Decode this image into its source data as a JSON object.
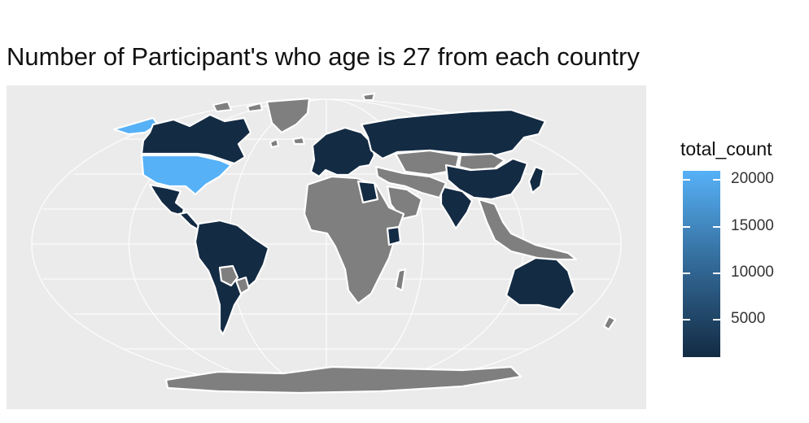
{
  "title": "Number of Participant's who age is 27 from each country",
  "legend": {
    "title": "total_count",
    "breaks": [
      {
        "label": "20000",
        "value": 20000
      },
      {
        "label": "15000",
        "value": 15000
      },
      {
        "label": "10000",
        "value": 10000
      },
      {
        "label": "5000",
        "value": 5000
      }
    ],
    "min": 1000,
    "max": 21000,
    "colors": {
      "low": "#132b43",
      "high": "#56b1f7",
      "na": "#7f7f7f"
    }
  },
  "map": {
    "projection": "robinson",
    "panel_background": "#ebebeb",
    "graticule_color": "#ffffff",
    "border_color": "#ffffff"
  },
  "regions": [
    {
      "name": "Alaska",
      "fill": "high"
    },
    {
      "name": "Canada",
      "fill": "low"
    },
    {
      "name": "United States",
      "fill": "high"
    },
    {
      "name": "Mexico",
      "fill": "low"
    },
    {
      "name": "Central America",
      "fill": "low"
    },
    {
      "name": "South America",
      "fill": "low"
    },
    {
      "name": "Bolivia",
      "fill": "na"
    },
    {
      "name": "Paraguay",
      "fill": "na"
    },
    {
      "name": "Greenland",
      "fill": "na"
    },
    {
      "name": "Iceland",
      "fill": "na"
    },
    {
      "name": "Europe",
      "fill": "low"
    },
    {
      "name": "Russia",
      "fill": "low"
    },
    {
      "name": "Kazakhstan",
      "fill": "na"
    },
    {
      "name": "Mongolia",
      "fill": "na"
    },
    {
      "name": "China",
      "fill": "low"
    },
    {
      "name": "India",
      "fill": "low"
    },
    {
      "name": "Middle East",
      "fill": "na"
    },
    {
      "name": "Saudi Arabia",
      "fill": "na"
    },
    {
      "name": "Africa",
      "fill": "na"
    },
    {
      "name": "Egypt",
      "fill": "low"
    },
    {
      "name": "Kenya",
      "fill": "low"
    },
    {
      "name": "Southeast Asia",
      "fill": "na"
    },
    {
      "name": "Japan",
      "fill": "low"
    },
    {
      "name": "Australia",
      "fill": "low"
    },
    {
      "name": "New Zealand",
      "fill": "na"
    },
    {
      "name": "Madagascar",
      "fill": "na"
    },
    {
      "name": "Antarctica",
      "fill": "na"
    }
  ]
}
